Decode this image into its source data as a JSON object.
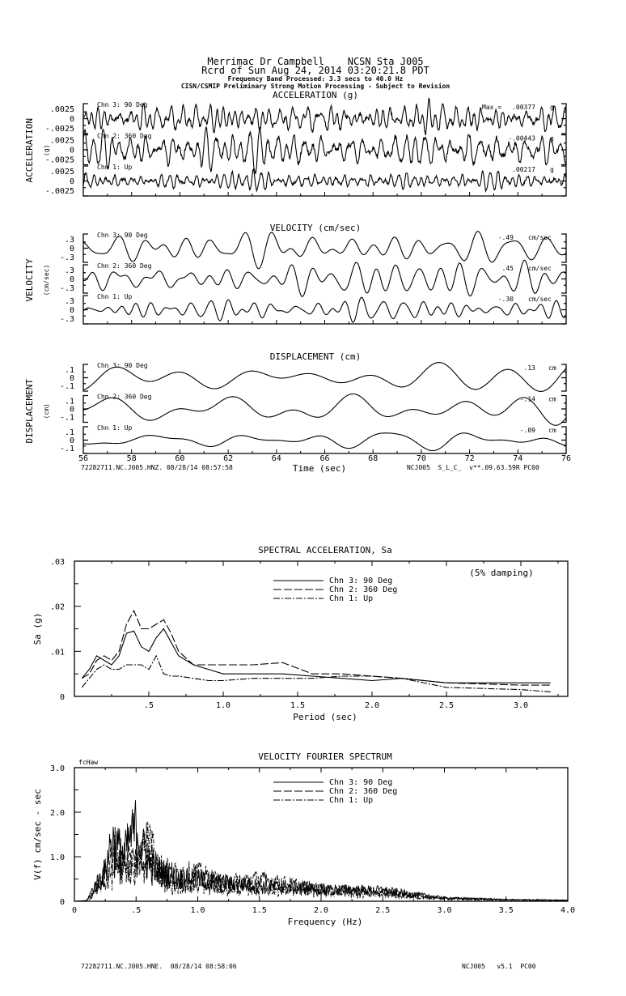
{
  "header": {
    "line1": "Merrimac Dr Campbell    NCSN Sta J005",
    "line2": "Rcrd of Sun Aug 24, 2014 03:20:21.8 PDT",
    "line3": "Frequency Band Processed: 3.3 secs to 40.0 Hz",
    "line4": "CISN/CSMIP Preliminary Strong Motion Processing - Subject to Revision"
  },
  "timeseries_footer": {
    "left": "72282711.NC.J005.HNZ. 08/28/14 08:57:58",
    "xlabel": "Time (sec)",
    "right": "NCJ005  S_L_C_  v**.09.63.59R PC00"
  },
  "footer": {
    "left": "72282711.NC.J005.HNE.  08/28/14 08:58:06",
    "right": "NCJ005   v5.1  PC00"
  },
  "max_label": "Max =",
  "chart_data": [
    {
      "type": "line",
      "title": "ACCELERATION (g)",
      "ylabel": "ACCELERATION",
      "yunit": "(g)",
      "xlim": [
        56,
        76
      ],
      "x_ticks": [
        "56",
        "58",
        "60",
        "62",
        "64",
        "66",
        "68",
        "70",
        "72",
        "74",
        "76"
      ],
      "y_ticks": [
        ".0025",
        "0",
        "-.0025"
      ],
      "ylim": [
        -0.0025,
        0.0025
      ],
      "unit": "g",
      "series": [
        {
          "name": "Chn 3: 90 Deg",
          "peak": ".00377",
          "peak_value": 0.00377,
          "dominant_hz": 2.5
        },
        {
          "name": "Chn 2: 360 Deg",
          "peak": "-.00443",
          "peak_value": -0.00443,
          "dominant_hz": 2.2
        },
        {
          "name": "Chn 1: Up",
          "peak": ".00217",
          "peak_value": 0.00217,
          "dominant_hz": 3.2
        }
      ]
    },
    {
      "type": "line",
      "title": "VELOCITY (cm/sec)",
      "ylabel": "VELOCITY",
      "yunit": "(cm/sec)",
      "xlim": [
        56,
        76
      ],
      "y_ticks": [
        ".3",
        "0",
        "-.3"
      ],
      "ylim": [
        -0.3,
        0.3
      ],
      "unit": "cm/sec",
      "series": [
        {
          "name": "Chn 3: 90 Deg",
          "peak": "-.49",
          "peak_value": -0.49,
          "dominant_hz": 0.9
        },
        {
          "name": "Chn 2: 360 Deg",
          "peak": ".45",
          "peak_value": 0.45,
          "dominant_hz": 0.9
        },
        {
          "name": "Chn 1: Up",
          "peak": "-.30",
          "peak_value": -0.3,
          "dominant_hz": 1.1
        }
      ]
    },
    {
      "type": "line",
      "title": "DISPLACEMENT (cm)",
      "ylabel": "DISPLACEMENT",
      "yunit": "(cm)",
      "xlim": [
        56,
        76
      ],
      "y_ticks": [
        ".1",
        "0",
        "-.1"
      ],
      "ylim": [
        -0.1,
        0.1
      ],
      "unit": "cm",
      "series": [
        {
          "name": "Chn 3: 90 Deg",
          "peak": ".13",
          "peak_value": 0.13,
          "dominant_hz": 0.3
        },
        {
          "name": "Chn 2: 360 Deg",
          "peak": "-.14",
          "peak_value": -0.14,
          "dominant_hz": 0.3
        },
        {
          "name": "Chn 1: Up",
          "peak": "-.09",
          "peak_value": -0.09,
          "dominant_hz": 0.35
        }
      ]
    },
    {
      "type": "line",
      "title": "SPECTRAL ACCELERATION, Sa",
      "xlabel": "Period (sec)",
      "ylabel": "Sa (g)",
      "annotation": "(5% damping)",
      "xlim": [
        0,
        3.3
      ],
      "ylim": [
        0,
        0.03
      ],
      "x_ticks": [
        ".5",
        "1.0",
        "1.5",
        "2.0",
        "2.5",
        "3.0"
      ],
      "y_ticks": [
        ".03",
        ".02",
        ".01",
        "0"
      ],
      "x": [
        0.05,
        0.1,
        0.15,
        0.2,
        0.25,
        0.3,
        0.35,
        0.4,
        0.45,
        0.5,
        0.55,
        0.6,
        0.65,
        0.7,
        0.8,
        0.9,
        1.0,
        1.2,
        1.4,
        1.6,
        1.8,
        2.0,
        2.2,
        2.5,
        3.0,
        3.2
      ],
      "series": [
        {
          "name": "Chn 3: 90 Deg",
          "style": "solid",
          "values": [
            0.004,
            0.006,
            0.009,
            0.008,
            0.007,
            0.009,
            0.014,
            0.0145,
            0.011,
            0.01,
            0.013,
            0.015,
            0.012,
            0.009,
            0.007,
            0.006,
            0.005,
            0.005,
            0.005,
            0.0045,
            0.004,
            0.0035,
            0.004,
            0.003,
            0.003,
            0.003
          ]
        },
        {
          "name": "Chn 2: 360 Deg",
          "style": "dashed",
          "values": [
            0.004,
            0.005,
            0.008,
            0.009,
            0.008,
            0.01,
            0.016,
            0.019,
            0.015,
            0.015,
            0.016,
            0.017,
            0.014,
            0.01,
            0.007,
            0.007,
            0.007,
            0.007,
            0.0075,
            0.005,
            0.005,
            0.0045,
            0.004,
            0.003,
            0.0025,
            0.0025
          ]
        },
        {
          "name": "Chn 1: Up",
          "style": "dashdot",
          "values": [
            0.002,
            0.004,
            0.006,
            0.007,
            0.006,
            0.006,
            0.007,
            0.007,
            0.007,
            0.006,
            0.009,
            0.005,
            0.0045,
            0.0045,
            0.004,
            0.0035,
            0.0035,
            0.004,
            0.004,
            0.004,
            0.0045,
            0.0045,
            0.004,
            0.002,
            0.0015,
            0.001
          ]
        }
      ]
    },
    {
      "type": "line",
      "title": "VELOCITY FOURIER SPECTRUM",
      "xlabel": "Frequency (Hz)",
      "ylabel": "V(f)   cm/sec - sec",
      "corner_label": "fcHaw",
      "xlim": [
        0,
        4.0
      ],
      "ylim": [
        0,
        3.0
      ],
      "x_ticks": [
        "0",
        ".5",
        "1.0",
        "1.5",
        "2.0",
        "2.5",
        "3.0",
        "3.5",
        "4.0"
      ],
      "y_ticks": [
        "3.0",
        "2.0",
        "1.0",
        "0"
      ],
      "envelope_x": [
        0,
        0.1,
        0.15,
        0.25,
        0.3,
        0.4,
        0.5,
        0.6,
        0.7,
        0.8,
        1.0,
        1.2,
        1.5,
        2.0,
        2.5,
        3.0,
        3.5,
        4.0
      ],
      "series": [
        {
          "name": "Chn 3: 90 Deg",
          "style": "solid",
          "envelope": [
            0,
            0.02,
            0.4,
            1.0,
            2.0,
            1.5,
            2.4,
            1.2,
            1.0,
            0.8,
            0.7,
            0.6,
            0.5,
            0.4,
            0.35,
            0.1,
            0.05,
            0.03
          ]
        },
        {
          "name": "Chn 2: 360 Deg",
          "style": "dashed",
          "envelope": [
            0,
            0.02,
            0.3,
            0.9,
            1.6,
            1.4,
            1.3,
            1.4,
            1.1,
            0.9,
            0.9,
            0.6,
            0.7,
            0.4,
            0.3,
            0.1,
            0.05,
            0.03
          ]
        },
        {
          "name": "Chn 1: Up",
          "style": "dashdot",
          "envelope": [
            0,
            0.02,
            0.2,
            0.6,
            0.9,
            1.1,
            1.0,
            2.2,
            0.8,
            0.5,
            0.5,
            0.4,
            0.4,
            0.3,
            0.2,
            0.1,
            0.05,
            0.03
          ]
        }
      ]
    }
  ]
}
